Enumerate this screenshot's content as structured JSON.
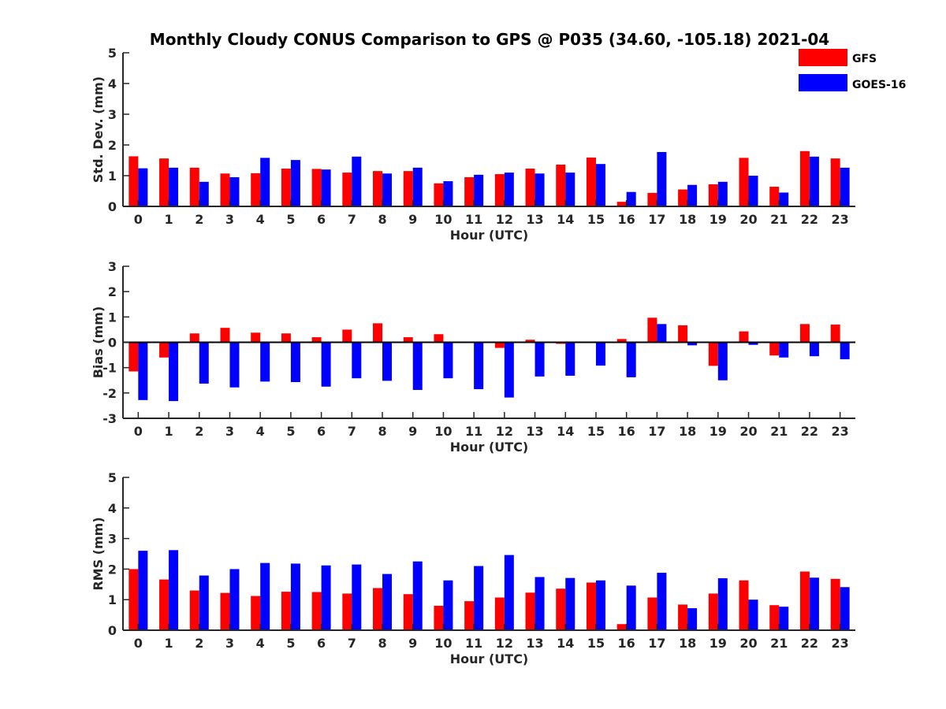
{
  "figure_title": "Monthly Cloudy CONUS Comparison to GPS @ P035 (34.60, -105.18) 2021-04",
  "legend": [
    {
      "name": "GFS",
      "color": "#ff0000"
    },
    {
      "name": "GOES-16",
      "color": "#0000ff"
    }
  ],
  "chart_data": [
    {
      "type": "bar",
      "ylabel": "Std. Dev. (mm)",
      "xlabel": "Hour (UTC)",
      "categories": [
        "0",
        "1",
        "2",
        "3",
        "4",
        "5",
        "6",
        "7",
        "8",
        "9",
        "10",
        "11",
        "12",
        "13",
        "14",
        "15",
        "16",
        "17",
        "18",
        "19",
        "20",
        "21",
        "22",
        "23"
      ],
      "ylim": [
        0,
        5
      ],
      "yticks": [
        0,
        1,
        2,
        3,
        4,
        5
      ],
      "series": [
        {
          "name": "GFS",
          "color": "#ff0000",
          "values": [
            1.63,
            1.56,
            1.26,
            1.07,
            1.08,
            1.23,
            1.22,
            1.1,
            1.15,
            1.15,
            0.75,
            0.95,
            1.05,
            1.23,
            1.36,
            1.59,
            0.15,
            0.44,
            0.55,
            0.72,
            1.58,
            0.64,
            1.8,
            1.56
          ]
        },
        {
          "name": "GOES-16",
          "color": "#0000ff",
          "values": [
            1.24,
            1.26,
            0.8,
            0.95,
            1.58,
            1.51,
            1.2,
            1.62,
            1.07,
            1.26,
            0.82,
            1.03,
            1.1,
            1.07,
            1.1,
            1.38,
            0.47,
            1.77,
            0.7,
            0.8,
            1.0,
            0.45,
            1.62,
            1.26
          ]
        }
      ]
    },
    {
      "type": "bar",
      "ylabel": "Bias (mm)",
      "xlabel": "Hour (UTC)",
      "categories": [
        "0",
        "1",
        "2",
        "3",
        "4",
        "5",
        "6",
        "7",
        "8",
        "9",
        "10",
        "11",
        "12",
        "13",
        "14",
        "15",
        "16",
        "17",
        "18",
        "19",
        "20",
        "21",
        "22",
        "23"
      ],
      "ylim": [
        -3,
        3
      ],
      "yticks": [
        -3,
        -2,
        -1,
        0,
        1,
        2,
        3
      ],
      "zero_line": true,
      "series": [
        {
          "name": "GFS",
          "color": "#ff0000",
          "values": [
            -1.15,
            -0.6,
            0.35,
            0.57,
            0.38,
            0.35,
            0.2,
            0.5,
            0.75,
            0.2,
            0.32,
            0.0,
            -0.22,
            0.1,
            -0.06,
            0.0,
            0.13,
            0.97,
            0.67,
            -0.93,
            0.43,
            -0.52,
            0.72,
            0.7
          ]
        },
        {
          "name": "GOES-16",
          "color": "#0000ff",
          "values": [
            -2.28,
            -2.32,
            -1.63,
            -1.78,
            -1.55,
            -1.57,
            -1.75,
            -1.42,
            -1.52,
            -1.88,
            -1.42,
            -1.85,
            -2.18,
            -1.35,
            -1.32,
            -0.92,
            -1.38,
            0.72,
            -0.12,
            -1.5,
            -0.1,
            -0.6,
            -0.55,
            -0.67
          ]
        }
      ]
    },
    {
      "type": "bar",
      "ylabel": "RMS (mm)",
      "xlabel": "Hour (UTC)",
      "categories": [
        "0",
        "1",
        "2",
        "3",
        "4",
        "5",
        "6",
        "7",
        "8",
        "9",
        "10",
        "11",
        "12",
        "13",
        "14",
        "15",
        "16",
        "17",
        "18",
        "19",
        "20",
        "21",
        "22",
        "23"
      ],
      "ylim": [
        0,
        5
      ],
      "yticks": [
        0,
        1,
        2,
        3,
        4,
        5
      ],
      "series": [
        {
          "name": "GFS",
          "color": "#ff0000",
          "values": [
            2.0,
            1.66,
            1.3,
            1.22,
            1.12,
            1.26,
            1.25,
            1.2,
            1.38,
            1.18,
            0.8,
            0.95,
            1.07,
            1.23,
            1.36,
            1.56,
            0.2,
            1.07,
            0.84,
            1.2,
            1.63,
            0.82,
            1.92,
            1.68
          ]
        },
        {
          "name": "GOES-16",
          "color": "#0000ff",
          "values": [
            2.6,
            2.62,
            1.79,
            2.0,
            2.2,
            2.18,
            2.12,
            2.15,
            1.84,
            2.25,
            1.63,
            2.1,
            2.46,
            1.74,
            1.71,
            1.63,
            1.46,
            1.88,
            0.72,
            1.7,
            1.0,
            0.77,
            1.72,
            1.41
          ]
        }
      ]
    }
  ]
}
